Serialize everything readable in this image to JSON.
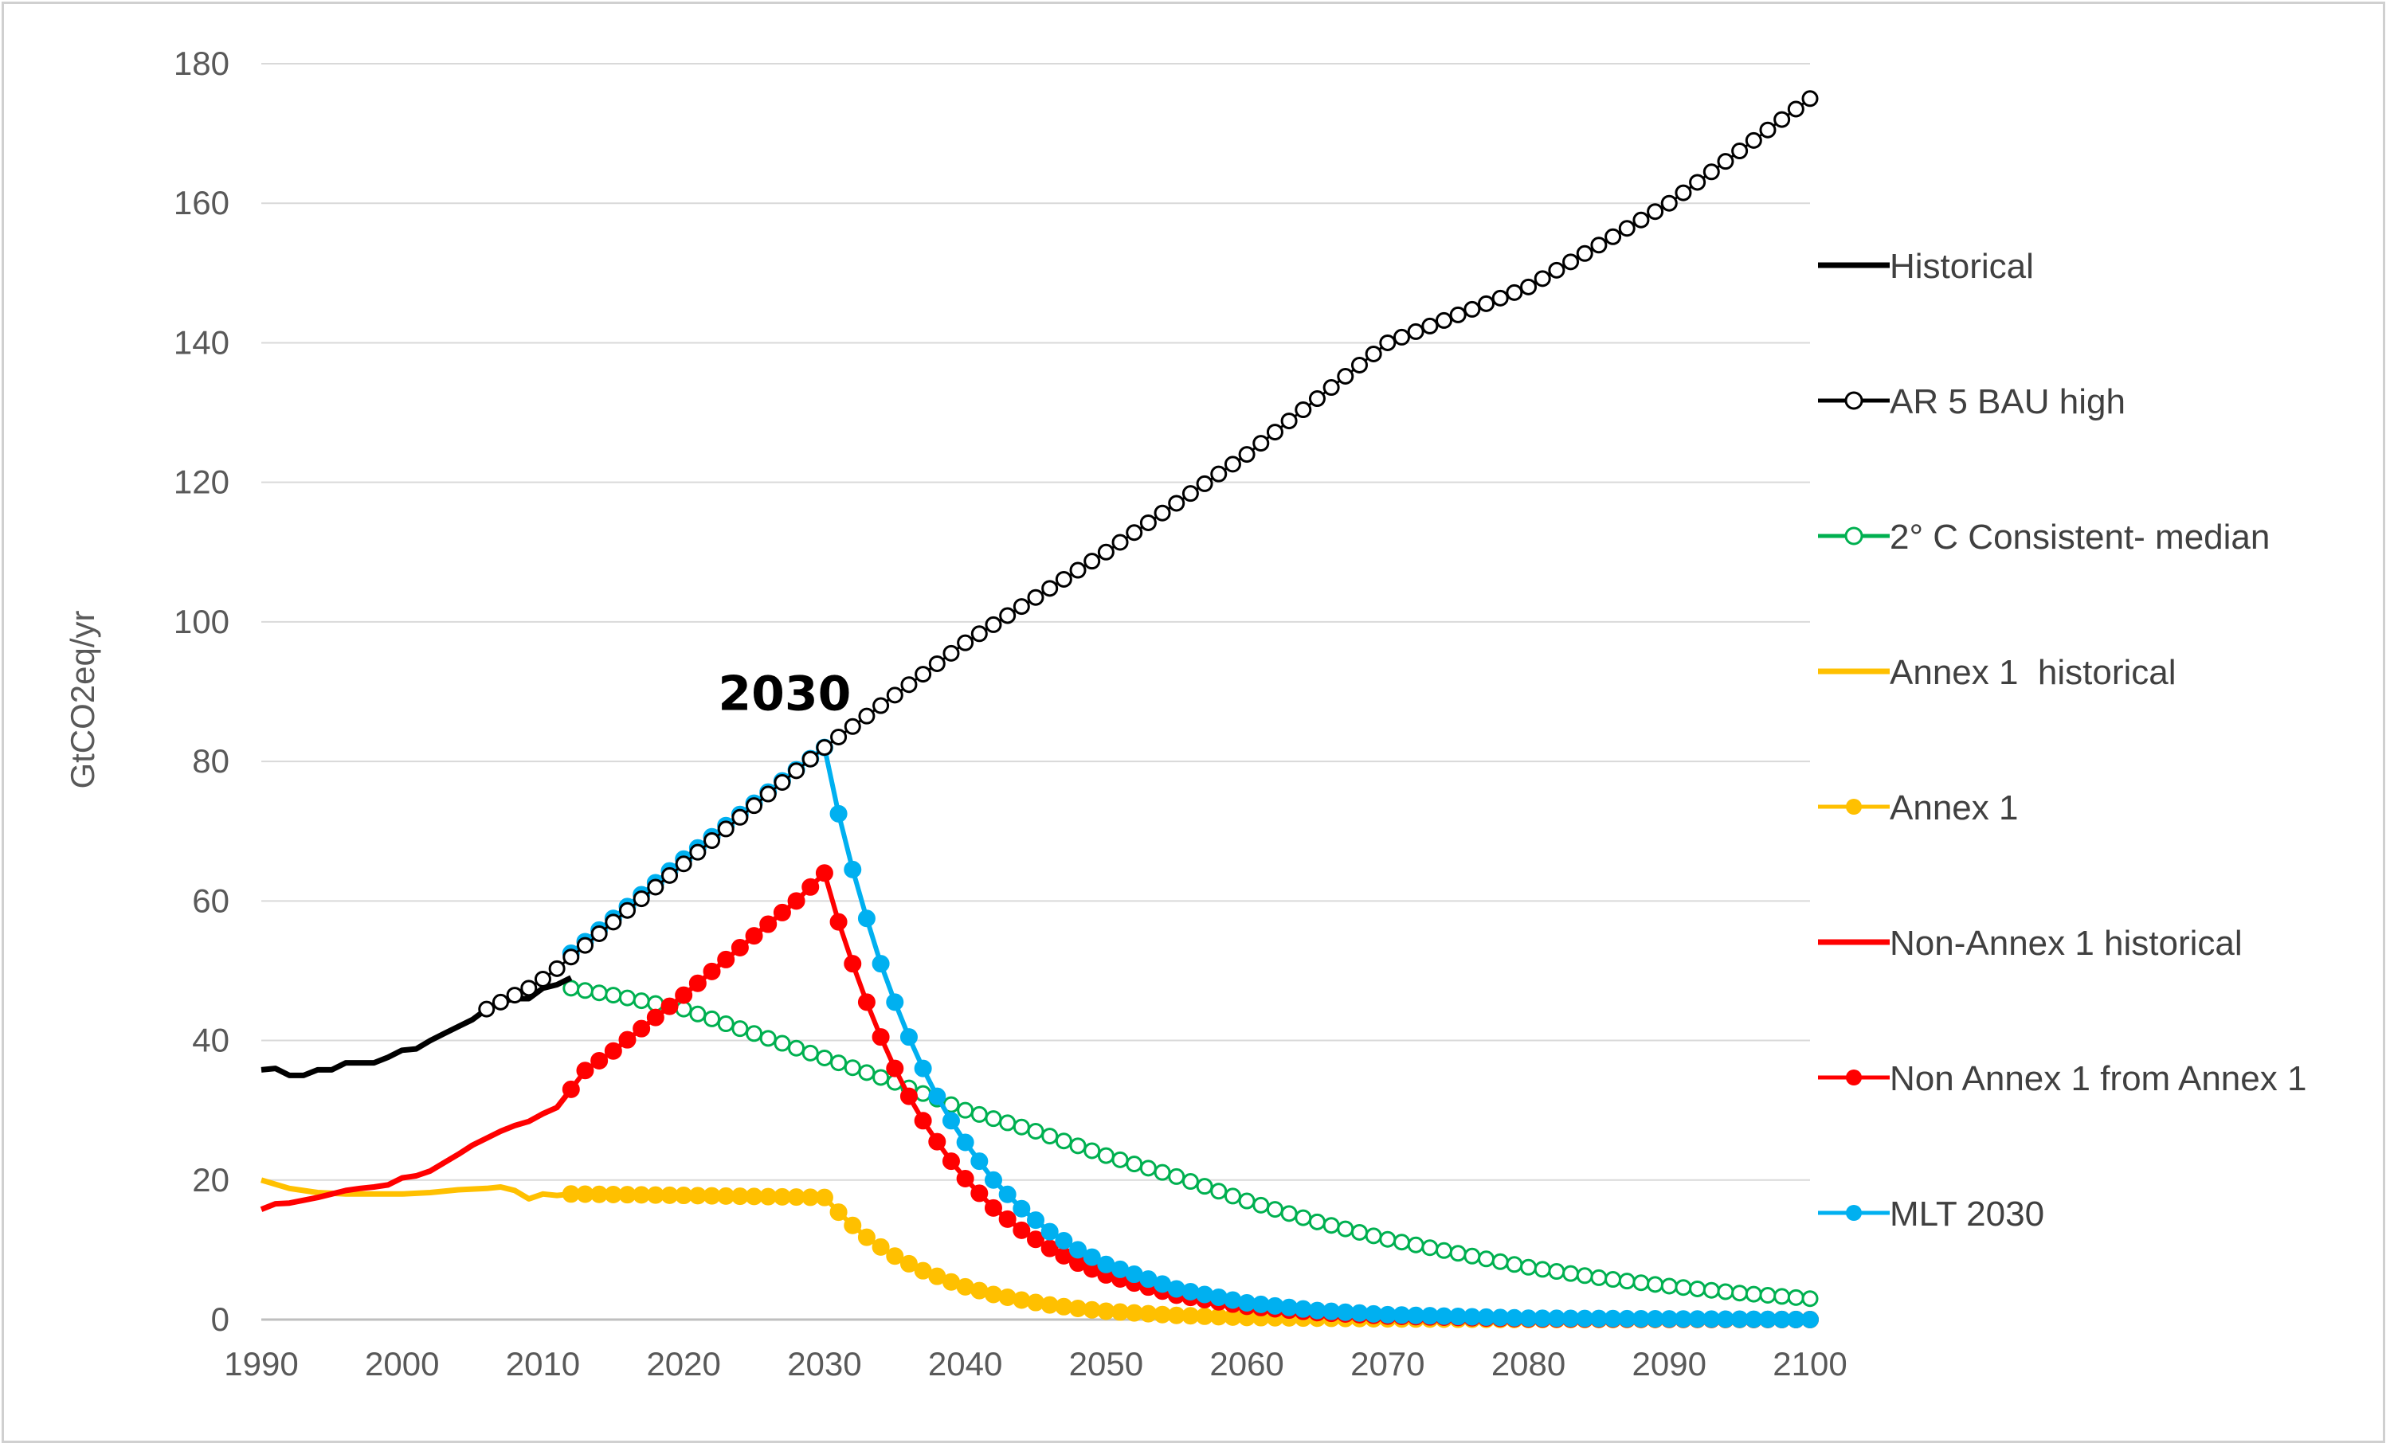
{
  "chart_data": {
    "type": "line",
    "title": "",
    "xlabel": "",
    "ylabel": "GtCO2eq/yr",
    "xlim": [
      1990,
      2100
    ],
    "ylim": [
      0,
      180
    ],
    "x_ticks": [
      "1990",
      "2000",
      "2010",
      "2020",
      "2030",
      "2040",
      "2050",
      "2060",
      "2070",
      "2080",
      "2090",
      "2100"
    ],
    "y_ticks": [
      "0",
      "20",
      "40",
      "60",
      "80",
      "100",
      "120",
      "140",
      "160",
      "180"
    ],
    "grid": "horizontal",
    "legend_position": "right",
    "annotation": {
      "text": "2030",
      "x": 2030,
      "y": 82
    },
    "colors": {
      "historical": "#000000",
      "bau": "#000000",
      "consistent": "#00b050",
      "annex1": "#ffc000",
      "nonannex": "#ff0000",
      "mlt": "#00b0f0",
      "grid": "#d9d9d9",
      "axis": "#bfbfbf"
    },
    "series": [
      {
        "name": "Historical",
        "style": "line",
        "points": [
          [
            1990,
            35.8
          ],
          [
            1991,
            36
          ],
          [
            1992,
            35
          ],
          [
            1993,
            35
          ],
          [
            1994,
            35.8
          ],
          [
            1995,
            35.8
          ],
          [
            1996,
            36.8
          ],
          [
            1997,
            36.8
          ],
          [
            1998,
            36.8
          ],
          [
            1999,
            37.6
          ],
          [
            2000,
            38.6
          ],
          [
            2001,
            38.8
          ],
          [
            2002,
            40
          ],
          [
            2003,
            41
          ],
          [
            2004,
            42
          ],
          [
            2005,
            43
          ],
          [
            2006,
            44.5
          ],
          [
            2007,
            45.5
          ],
          [
            2008,
            46
          ],
          [
            2009,
            46
          ],
          [
            2010,
            47.5
          ],
          [
            2011,
            48
          ],
          [
            2012,
            49
          ]
        ]
      },
      {
        "name": "AR 5 BAU high",
        "style": "hollow",
        "points": [
          [
            2006,
            44.5
          ],
          [
            2007,
            45.5
          ],
          [
            2008,
            46.5
          ],
          [
            2009,
            47.5
          ],
          [
            2010,
            48.8
          ],
          [
            2011,
            50.3
          ],
          [
            2030,
            82
          ],
          [
            2040,
            97
          ],
          [
            2050,
            110
          ],
          [
            2060,
            124
          ],
          [
            2070,
            140
          ],
          [
            2075,
            144
          ],
          [
            2080,
            148
          ],
          [
            2090,
            160
          ],
          [
            2100,
            175
          ]
        ]
      },
      {
        "name": "2° C Consistent- median",
        "style": "hollow",
        "points": [
          [
            2012,
            47.5
          ],
          [
            2015,
            46.5
          ],
          [
            2020,
            44.5
          ],
          [
            2025,
            41
          ],
          [
            2030,
            37.5
          ],
          [
            2035,
            34
          ],
          [
            2040,
            30
          ],
          [
            2045,
            27
          ],
          [
            2050,
            23.5
          ],
          [
            2055,
            20.5
          ],
          [
            2060,
            17
          ],
          [
            2065,
            14
          ],
          [
            2070,
            11.5
          ],
          [
            2075,
            9.5
          ],
          [
            2080,
            7.5
          ],
          [
            2085,
            6
          ],
          [
            2090,
            4.8
          ],
          [
            2095,
            3.8
          ],
          [
            2100,
            3
          ]
        ]
      },
      {
        "name": "Annex 1  historical",
        "style": "line",
        "points": [
          [
            1990,
            20
          ],
          [
            1992,
            18.8
          ],
          [
            1994,
            18.2
          ],
          [
            1996,
            18
          ],
          [
            1998,
            18
          ],
          [
            2000,
            18
          ],
          [
            2002,
            18.2
          ],
          [
            2004,
            18.6
          ],
          [
            2006,
            18.8
          ],
          [
            2007,
            19
          ],
          [
            2008,
            18.5
          ],
          [
            2009,
            17.3
          ],
          [
            2010,
            18
          ],
          [
            2011,
            17.8
          ],
          [
            2012,
            18
          ]
        ]
      },
      {
        "name": "Annex 1",
        "style": "filled",
        "points": [
          [
            2012,
            18
          ],
          [
            2020,
            17.8
          ],
          [
            2030,
            17.5
          ],
          [
            2031,
            15.4
          ],
          [
            2032,
            13.5
          ],
          [
            2033,
            11.8
          ],
          [
            2034,
            10.4
          ],
          [
            2035,
            9.1
          ],
          [
            2036,
            8
          ],
          [
            2037,
            7
          ],
          [
            2038,
            6.2
          ],
          [
            2039,
            5.4
          ],
          [
            2040,
            4.7
          ],
          [
            2042,
            3.6
          ],
          [
            2044,
            2.8
          ],
          [
            2046,
            2.1
          ],
          [
            2048,
            1.6
          ],
          [
            2050,
            1.2
          ],
          [
            2055,
            0.6
          ],
          [
            2060,
            0.3
          ],
          [
            2070,
            0.1
          ],
          [
            2080,
            0
          ],
          [
            2100,
            0
          ]
        ]
      },
      {
        "name": "Non-Annex 1 historical",
        "style": "line",
        "points": [
          [
            1990,
            15.8
          ],
          [
            1991,
            16.6
          ],
          [
            1992,
            16.7
          ],
          [
            1993,
            17.1
          ],
          [
            1994,
            17.5
          ],
          [
            1995,
            18
          ],
          [
            1996,
            18.5
          ],
          [
            1997,
            18.8
          ],
          [
            1998,
            19
          ],
          [
            1999,
            19.3
          ],
          [
            2000,
            20.3
          ],
          [
            2001,
            20.6
          ],
          [
            2002,
            21.3
          ],
          [
            2003,
            22.5
          ],
          [
            2004,
            23.7
          ],
          [
            2005,
            25
          ],
          [
            2006,
            26
          ],
          [
            2007,
            27
          ],
          [
            2008,
            27.8
          ],
          [
            2009,
            28.4
          ],
          [
            2010,
            29.5
          ],
          [
            2011,
            30.4
          ],
          [
            2012,
            33
          ]
        ]
      },
      {
        "name": "Non Annex 1 from Annex 1",
        "style": "filled",
        "points": [
          [
            2012,
            33
          ],
          [
            2013,
            35.7
          ],
          [
            2015,
            38.5
          ],
          [
            2018,
            43.3
          ],
          [
            2020,
            46.5
          ],
          [
            2025,
            55
          ],
          [
            2028,
            60
          ],
          [
            2030,
            64
          ],
          [
            2031,
            57
          ],
          [
            2032,
            51
          ],
          [
            2033,
            45.5
          ],
          [
            2034,
            40.5
          ],
          [
            2035,
            36
          ],
          [
            2036,
            32
          ],
          [
            2037,
            28.5
          ],
          [
            2038,
            25.5
          ],
          [
            2039,
            22.7
          ],
          [
            2040,
            20.2
          ],
          [
            2042,
            16
          ],
          [
            2044,
            12.8
          ],
          [
            2046,
            10.2
          ],
          [
            2048,
            8.1
          ],
          [
            2050,
            6.4
          ],
          [
            2055,
            3.5
          ],
          [
            2060,
            1.9
          ],
          [
            2065,
            1
          ],
          [
            2070,
            0.5
          ],
          [
            2080,
            0.1
          ],
          [
            2100,
            0
          ]
        ]
      },
      {
        "name": "MLT 2030",
        "style": "filled",
        "points": [
          [
            2012,
            52.5
          ],
          [
            2015,
            57.5
          ],
          [
            2020,
            66
          ],
          [
            2025,
            74
          ],
          [
            2030,
            82
          ],
          [
            2031,
            72.5
          ],
          [
            2032,
            64.5
          ],
          [
            2033,
            57.5
          ],
          [
            2034,
            51
          ],
          [
            2035,
            45.5
          ],
          [
            2036,
            40.5
          ],
          [
            2037,
            36
          ],
          [
            2038,
            32
          ],
          [
            2039,
            28.5
          ],
          [
            2040,
            25.4
          ],
          [
            2042,
            20
          ],
          [
            2044,
            15.9
          ],
          [
            2046,
            12.6
          ],
          [
            2048,
            10
          ],
          [
            2050,
            7.9
          ],
          [
            2055,
            4.4
          ],
          [
            2060,
            2.4
          ],
          [
            2065,
            1.3
          ],
          [
            2070,
            0.7
          ],
          [
            2080,
            0.2
          ],
          [
            2100,
            0
          ]
        ]
      }
    ]
  }
}
